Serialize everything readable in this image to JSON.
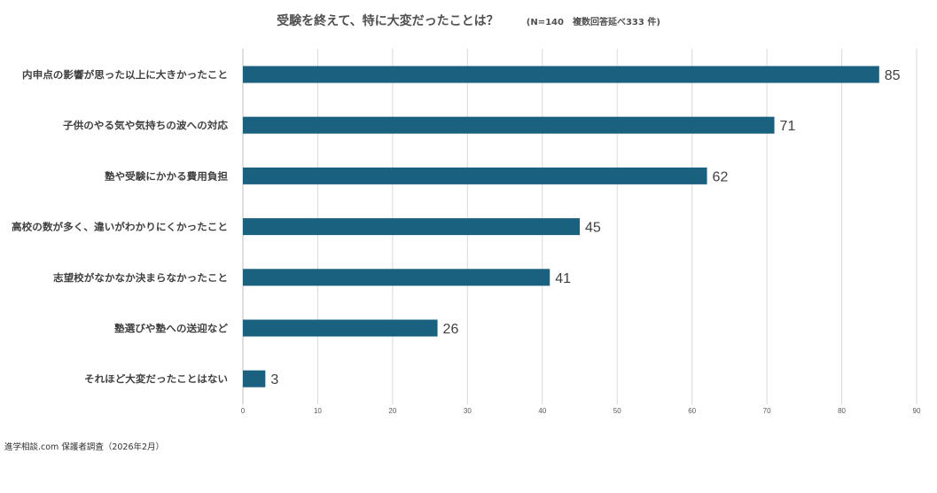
{
  "chart_data": {
    "type": "bar",
    "orientation": "horizontal",
    "title": "受験を終えて、特に大変だったことは？",
    "subtitle": "(N=140　複数回答延べ333 件)",
    "categories": [
      "内申点の影響が思った以上に大きかったこと",
      "子供のやる気や気持ちの波への対応",
      "塾や受験にかかる費用負担",
      "高校の数が多く、違いがわかりにくかったこと",
      "志望校がなかなか決まらなかったこと",
      "塾選びや塾への送迎など",
      "それほど大変だったことはない"
    ],
    "values": [
      85,
      71,
      62,
      45,
      41,
      26,
      3
    ],
    "xlim": [
      0,
      90
    ],
    "ticks": [
      "0",
      "10",
      "20",
      "30",
      "40",
      "50",
      "60",
      "70",
      "80",
      "90"
    ],
    "grid": true,
    "legend": "none",
    "bar_color": "#1a6180"
  },
  "footer": {
    "source": "進学相談.com 保護者調査（2026年2月）"
  }
}
